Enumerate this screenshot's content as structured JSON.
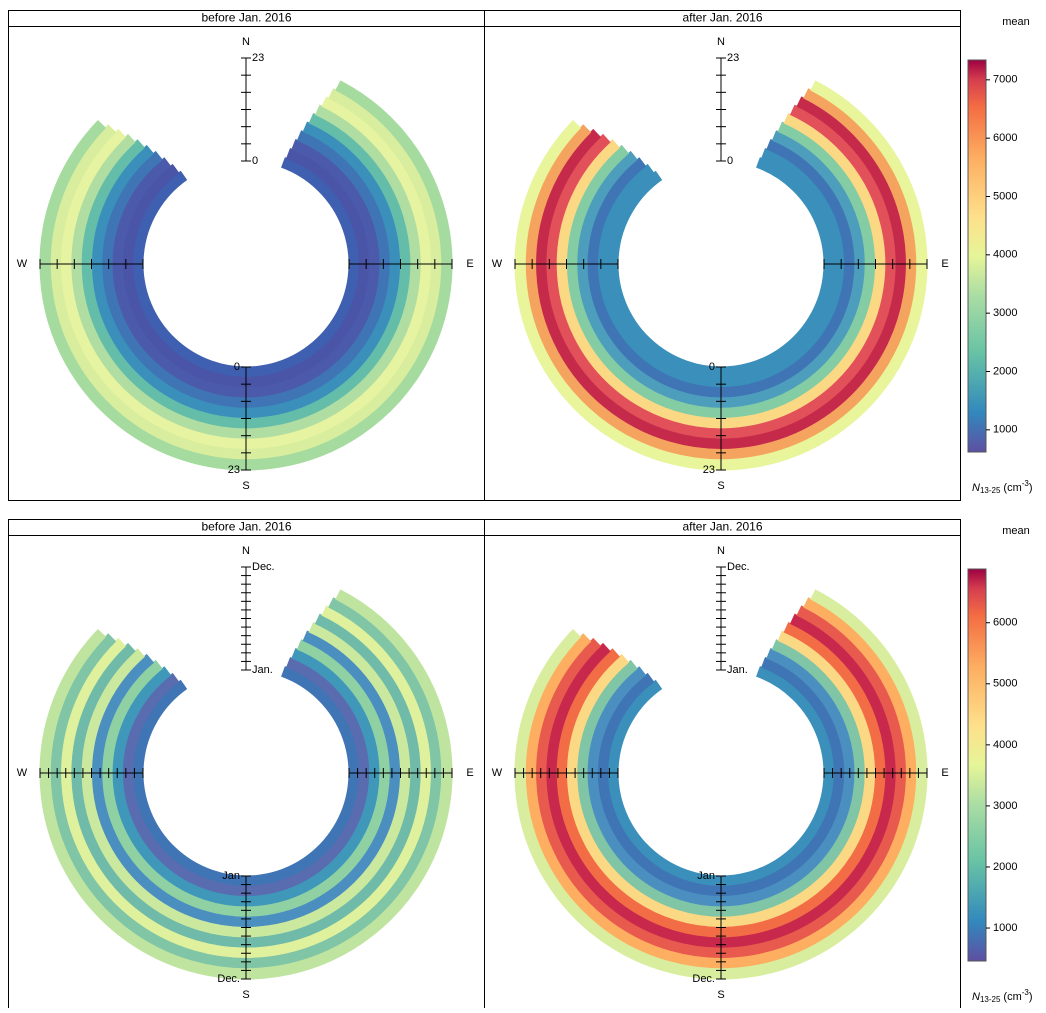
{
  "chart_data": [
    {
      "type": "annulus",
      "panels": [
        "before Jan. 2016",
        "after Jan. 2016"
      ],
      "directions": {
        "N": "N",
        "E": "E",
        "S": "S",
        "W": "W"
      },
      "north_inner": "0",
      "north_outer": "23",
      "south_inner": "0",
      "south_outer": "23",
      "colorbar": {
        "title": "mean",
        "ylim": [
          620,
          7340
        ],
        "yticks": [
          1000,
          2000,
          3000,
          4000,
          5000,
          6000,
          7000
        ],
        "label": {
          "symbol": "N",
          "subscript": "13-25",
          "unit_open": "(cm",
          "superscript": "-3",
          "unit_close": ")"
        }
      }
    },
    {
      "type": "annulus",
      "panels": [
        "before Jan. 2016",
        "after Jan. 2016"
      ],
      "directions": {
        "N": "N",
        "E": "E",
        "S": "S",
        "W": "W"
      },
      "north_inner": "Jan.",
      "north_outer": "Dec.",
      "south_inner": "Jan",
      "south_outer": "Dec.",
      "colorbar": {
        "title": "mean",
        "ylim": [
          460,
          6880
        ],
        "yticks": [
          1000,
          2000,
          3000,
          4000,
          5000,
          6000
        ],
        "label": {
          "symbol": "N",
          "subscript": "13-25",
          "unit_open": "(cm",
          "superscript": "-3",
          "unit_close": ")"
        }
      }
    }
  ]
}
